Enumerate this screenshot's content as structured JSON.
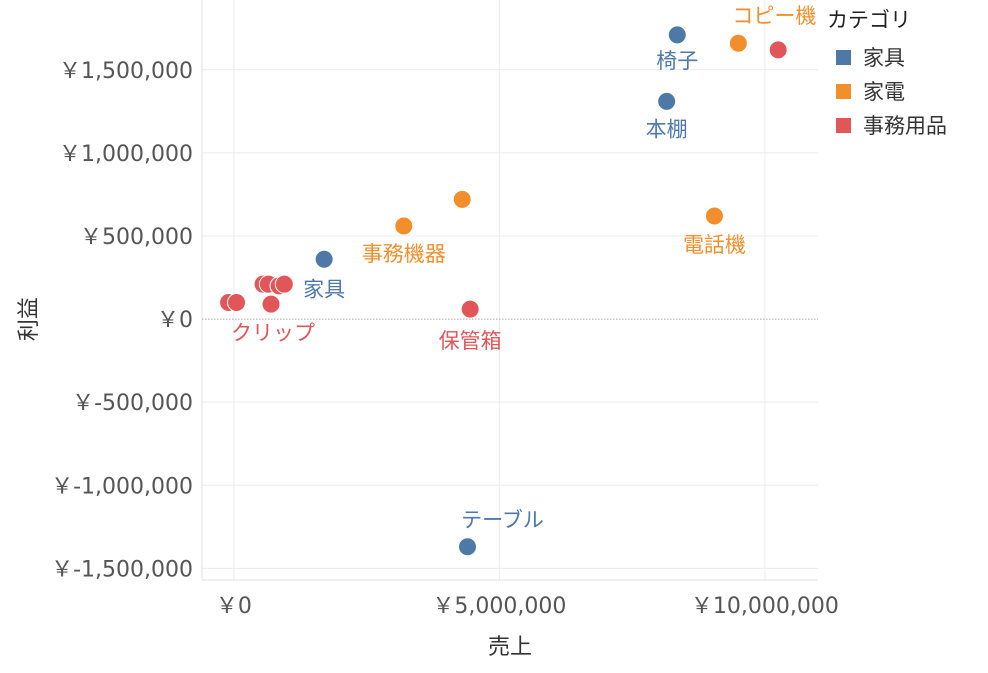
{
  "colors": {
    "家具": "#4e79a7",
    "家電": "#f28e2b",
    "事務用品": "#e15759"
  },
  "legend": {
    "title": "カテゴリ",
    "items": [
      "家具",
      "家電",
      "事務用品"
    ]
  },
  "chart_data": {
    "type": "scatter",
    "xlabel": "売上",
    "ylabel": "利益",
    "xlim": [
      -600000,
      11000000
    ],
    "ylim": [
      -1570000,
      1920000
    ],
    "x_ticks": [
      0,
      5000000,
      10000000
    ],
    "x_tick_labels": [
      "￥0",
      "￥5,000,000",
      "￥10,000,000"
    ],
    "y_ticks": [
      1500000,
      1000000,
      500000,
      0,
      -500000,
      -1000000,
      -1500000
    ],
    "y_tick_labels": [
      "￥1,500,000",
      "￥1,000,000",
      "￥500,000",
      "￥0",
      "￥-500,000",
      "￥-1,000,000",
      "￥-1,500,000"
    ],
    "grid": true,
    "legend_position": "top-right",
    "points": [
      {
        "category": "家具",
        "x": 8350000,
        "y": 1710000,
        "label": "椅子"
      },
      {
        "category": "家具",
        "x": 8150000,
        "y": 1310000,
        "label": "本棚"
      },
      {
        "category": "家具",
        "x": 1700000,
        "y": 360000,
        "label": "家具"
      },
      {
        "category": "家具",
        "x": 4400000,
        "y": -1370000,
        "label": "テーブル"
      },
      {
        "category": "家電",
        "x": 9500000,
        "y": 1660000,
        "label": "コピー機"
      },
      {
        "category": "家電",
        "x": 9050000,
        "y": 620000,
        "label": "電話機"
      },
      {
        "category": "家電",
        "x": 4300000,
        "y": 720000,
        "label": ""
      },
      {
        "category": "家電",
        "x": 3200000,
        "y": 560000,
        "label": "事務機器"
      },
      {
        "category": "事務用品",
        "x": 10250000,
        "y": 1620000,
        "label": ""
      },
      {
        "category": "事務用品",
        "x": 4450000,
        "y": 60000,
        "label": "保管箱"
      },
      {
        "category": "事務用品",
        "x": 550000,
        "y": 210000,
        "label": ""
      },
      {
        "category": "事務用品",
        "x": 650000,
        "y": 210000,
        "label": ""
      },
      {
        "category": "事務用品",
        "x": 850000,
        "y": 200000,
        "label": ""
      },
      {
        "category": "事務用品",
        "x": 950000,
        "y": 210000,
        "label": ""
      },
      {
        "category": "事務用品",
        "x": 700000,
        "y": 90000,
        "label": "クリップ"
      },
      {
        "category": "事務用品",
        "x": -100000,
        "y": 100000,
        "label": ""
      },
      {
        "category": "事務用品",
        "x": 50000,
        "y": 100000,
        "label": ""
      }
    ]
  }
}
